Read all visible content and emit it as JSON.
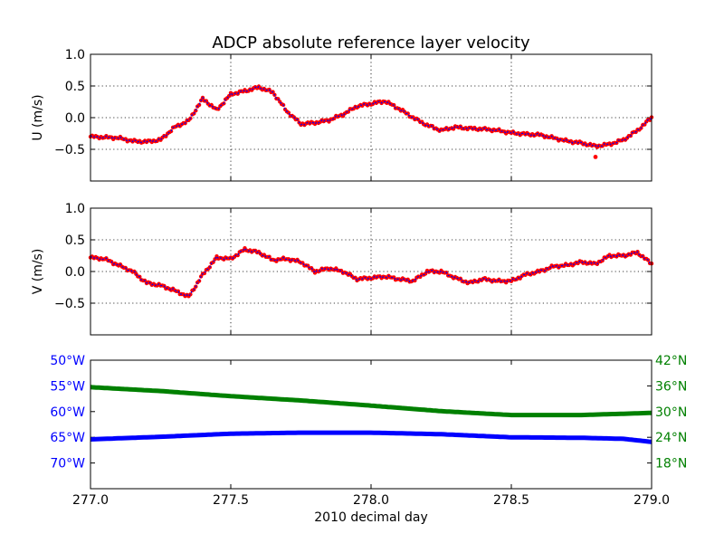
{
  "title": "ADCP absolute reference layer velocity",
  "colors": {
    "red": "#ff0000",
    "blue": "#0000ff",
    "green": "#008000",
    "black": "#000000"
  },
  "chart_data": [
    {
      "id": "u_panel",
      "type": "scatter",
      "ylabel": "U (m/s)",
      "xlim": [
        277.0,
        279.0
      ],
      "ylim": [
        -1.0,
        1.0
      ],
      "ytick_values": [
        -0.5,
        0.0,
        0.5,
        1.0
      ],
      "ytick_labels": [
        "−0.5",
        "0.0",
        "0.5",
        "1.0"
      ],
      "xtick_values": [
        277.0,
        277.5,
        278.0,
        278.5,
        279.0
      ],
      "grid": true,
      "outlier": {
        "x": 278.8,
        "y": -0.62
      },
      "series": [
        {
          "points_color": "#ff0000",
          "line_color": "#0000ff",
          "x": [
            277.0,
            277.05,
            277.1,
            277.15,
            277.2,
            277.25,
            277.3,
            277.35,
            277.4,
            277.45,
            277.5,
            277.55,
            277.6,
            277.65,
            277.7,
            277.75,
            277.8,
            277.85,
            277.9,
            277.95,
            278.0,
            278.05,
            278.1,
            278.15,
            278.2,
            278.25,
            278.3,
            278.35,
            278.4,
            278.45,
            278.5,
            278.55,
            278.6,
            278.65,
            278.7,
            278.75,
            278.8,
            278.85,
            278.9,
            278.95,
            279.0
          ],
          "y": [
            -0.3,
            -0.31,
            -0.32,
            -0.37,
            -0.38,
            -0.35,
            -0.15,
            -0.05,
            0.3,
            0.12,
            0.37,
            0.42,
            0.48,
            0.4,
            0.1,
            -0.1,
            -0.08,
            -0.04,
            0.05,
            0.18,
            0.22,
            0.26,
            0.14,
            0.0,
            -0.12,
            -0.2,
            -0.15,
            -0.17,
            -0.18,
            -0.2,
            -0.24,
            -0.26,
            -0.27,
            -0.32,
            -0.37,
            -0.4,
            -0.45,
            -0.42,
            -0.35,
            -0.2,
            0.0
          ]
        }
      ]
    },
    {
      "id": "v_panel",
      "type": "scatter",
      "ylabel": "V (m/s)",
      "xlim": [
        277.0,
        279.0
      ],
      "ylim": [
        -1.0,
        1.0
      ],
      "ytick_values": [
        -0.5,
        0.0,
        0.5,
        1.0
      ],
      "ytick_labels": [
        "−0.5",
        "0.0",
        "0.5",
        "1.0"
      ],
      "xtick_values": [
        277.0,
        277.5,
        278.0,
        278.5,
        279.0
      ],
      "grid": true,
      "series": [
        {
          "points_color": "#ff0000",
          "line_color": "#0000ff",
          "x": [
            277.0,
            277.05,
            277.1,
            277.15,
            277.2,
            277.25,
            277.3,
            277.35,
            277.4,
            277.45,
            277.5,
            277.55,
            277.6,
            277.65,
            277.7,
            277.75,
            277.8,
            277.85,
            277.9,
            277.95,
            278.0,
            278.05,
            278.1,
            278.15,
            278.2,
            278.25,
            278.3,
            278.35,
            278.4,
            278.45,
            278.5,
            278.55,
            278.6,
            278.65,
            278.7,
            278.75,
            278.8,
            278.85,
            278.9,
            278.95,
            279.0
          ],
          "y": [
            0.22,
            0.2,
            0.1,
            0.0,
            -0.18,
            -0.22,
            -0.3,
            -0.4,
            -0.05,
            0.22,
            0.2,
            0.35,
            0.3,
            0.18,
            0.2,
            0.15,
            0.0,
            0.05,
            0.0,
            -0.12,
            -0.1,
            -0.08,
            -0.12,
            -0.15,
            0.0,
            0.0,
            -0.1,
            -0.18,
            -0.12,
            -0.15,
            -0.15,
            -0.05,
            0.0,
            0.08,
            0.1,
            0.15,
            0.12,
            0.25,
            0.25,
            0.3,
            0.12
          ]
        }
      ]
    },
    {
      "id": "position_panel",
      "type": "line",
      "xlabel": "2010 decimal day",
      "xlim": [
        277.0,
        279.0
      ],
      "xtick_values": [
        277.0,
        277.5,
        278.0,
        278.5,
        279.0
      ],
      "xtick_labels": [
        "277.0",
        "277.5",
        "278.0",
        "278.5",
        "279.0"
      ],
      "grid": false,
      "left_axis": {
        "quantity": "longitude",
        "ylim": [
          -75,
          -50
        ],
        "ytick_values": [
          -50,
          -55,
          -60,
          -65,
          -70
        ],
        "ytick_labels": [
          "50°W",
          "55°W",
          "60°W",
          "65°W",
          "70°W"
        ],
        "color": "#0000ff"
      },
      "right_axis": {
        "quantity": "latitude",
        "ylim": [
          12,
          42
        ],
        "ytick_values": [
          42,
          36,
          30,
          24,
          18
        ],
        "ytick_labels": [
          "42°N",
          "36°N",
          "30°N",
          "24°N",
          "18°N"
        ],
        "color": "#008000"
      },
      "series": [
        {
          "axis": "left",
          "color": "#0000ff",
          "x": [
            277.0,
            277.25,
            277.5,
            277.75,
            278.0,
            278.25,
            278.5,
            278.75,
            278.9,
            279.0
          ],
          "y": [
            -65.4,
            -64.9,
            -64.3,
            -64.1,
            -64.1,
            -64.4,
            -65.0,
            -65.1,
            -65.3,
            -65.9
          ]
        },
        {
          "axis": "right",
          "color": "#008000",
          "x": [
            277.0,
            277.25,
            277.5,
            277.75,
            278.0,
            278.25,
            278.5,
            278.75,
            279.0
          ],
          "y": [
            35.7,
            34.8,
            33.6,
            32.6,
            31.4,
            30.1,
            29.2,
            29.2,
            29.7
          ]
        }
      ]
    }
  ]
}
